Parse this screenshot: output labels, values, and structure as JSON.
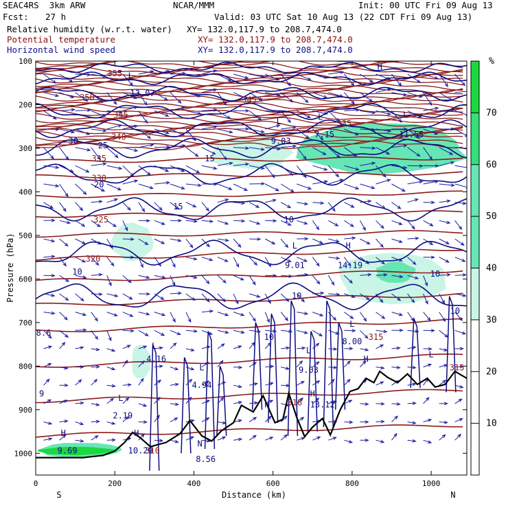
{
  "header": {
    "title": "SEAC4RS  3km ARW",
    "center": "NCAR/MMM",
    "init": "Init: 00 UTC Fri 09 Aug 13",
    "fcst_label": "Fcst:",
    "fcst_value": "27 h",
    "valid": "Valid: 03 UTC Sat 10 Aug 13 (22 CDT Fri 09 Aug 13)",
    "fields": [
      {
        "name": "Relative humidity (w.r.t. water)",
        "xy": "XY= 132.0,117.9 to 208.7,474.0",
        "color": "#000000"
      },
      {
        "name": "Potential temperature",
        "xy": "XY= 132.0,117.9 to 208.7,474.0",
        "color": "#8b1010"
      },
      {
        "name": "Horizontal wind speed",
        "xy": "XY= 132.0,117.9 to 208.7,474.0",
        "color": "#10108b"
      }
    ]
  },
  "chart_data": {
    "type": "heatmap",
    "xlabel": "Distance (km)",
    "ylabel": "Pressure (hPa)",
    "xlim": [
      0,
      1090
    ],
    "ylim": [
      1050,
      100
    ],
    "x_ticks": [
      0,
      200,
      400,
      600,
      800,
      1000
    ],
    "x_tick_labels": [
      "0",
      "200",
      "400",
      "600",
      "800",
      "1000"
    ],
    "y_ticks": [
      100,
      200,
      300,
      400,
      500,
      600,
      700,
      800,
      900,
      1000
    ],
    "y_tick_labels": [
      "100",
      "200",
      "300",
      "400",
      "500",
      "600",
      "700",
      "800",
      "900",
      "1000"
    ],
    "x_end_labels": {
      "left": "S",
      "right": "N"
    },
    "colorbar": {
      "unit": "%",
      "ticks": [
        10,
        20,
        30,
        40,
        50,
        60,
        70
      ],
      "range": [
        0,
        80
      ],
      "shading_threshold": 30,
      "colors": [
        "#c8f5e6",
        "#66e6b5",
        "#35e07a",
        "#1bd83f"
      ]
    },
    "rh_shaded_regions": [
      {
        "x": [
          190,
          300
        ],
        "p": [
          470,
          560
        ],
        "level": 30
      },
      {
        "x": [
          440,
          650
        ],
        "p": [
          270,
          350
        ],
        "level": 30
      },
      {
        "x": [
          650,
          1090
        ],
        "p": [
          240,
          360
        ],
        "level": 40
      },
      {
        "x": [
          890,
          1070
        ],
        "p": [
          260,
          330
        ],
        "level": 50
      },
      {
        "x": [
          760,
          1040
        ],
        "p": [
          540,
          660
        ],
        "level": 30
      },
      {
        "x": [
          860,
          960
        ],
        "p": [
          560,
          610
        ],
        "level": 40
      },
      {
        "x": [
          240,
          290
        ],
        "p": [
          750,
          830
        ],
        "level": 30
      },
      {
        "x": [
          0,
          230
        ],
        "p": [
          975,
          1010
        ],
        "level": 40
      },
      {
        "x": [
          0,
          200
        ],
        "p": [
          985,
          1005
        ],
        "level": 70
      }
    ],
    "theta_contour_labels": [
      {
        "text": "350",
        "x": 130,
        "p": 190
      },
      {
        "text": "345",
        "x": 540,
        "p": 195
      },
      {
        "text": "345",
        "x": 215,
        "p": 230
      },
      {
        "text": "340",
        "x": 210,
        "p": 280
      },
      {
        "text": "335",
        "x": 780,
        "p": 250
      },
      {
        "text": "335",
        "x": 160,
        "p": 330
      },
      {
        "text": "330",
        "x": 160,
        "p": 375
      },
      {
        "text": "325",
        "x": 165,
        "p": 470
      },
      {
        "text": "320",
        "x": 145,
        "p": 560
      },
      {
        "text": "315",
        "x": 860,
        "p": 740
      },
      {
        "text": "318",
        "x": 655,
        "p": 890
      },
      {
        "text": "315",
        "x": 1065,
        "p": 810
      },
      {
        "text": "310",
        "x": 295,
        "p": 1000
      },
      {
        "text": "355",
        "x": 200,
        "p": 135
      }
    ],
    "wind_contour_labels": [
      {
        "text": "10",
        "x": 105,
        "p": 590
      },
      {
        "text": "10",
        "x": 640,
        "p": 470
      },
      {
        "text": "10",
        "x": 660,
        "p": 645
      },
      {
        "text": "10",
        "x": 590,
        "p": 740
      },
      {
        "text": "10",
        "x": 1010,
        "p": 595
      },
      {
        "text": "10",
        "x": 1060,
        "p": 680
      },
      {
        "text": "15",
        "x": 440,
        "p": 330
      },
      {
        "text": "15",
        "x": 360,
        "p": 440
      },
      {
        "text": "20",
        "x": 160,
        "p": 390
      },
      {
        "text": "25",
        "x": 170,
        "p": 300
      },
      {
        "text": "30",
        "x": 95,
        "p": 290
      }
    ],
    "extrema_labels": [
      {
        "text": "L",
        "x": 615,
        "p": 245
      },
      {
        "text": "9.03",
        "x": 620,
        "p": 290
      },
      {
        "text": "L",
        "x": 720,
        "p": 235
      },
      {
        "text": "7.15",
        "x": 730,
        "p": 275
      },
      {
        "text": "L",
        "x": 935,
        "p": 230
      },
      {
        "text": "11.55",
        "x": 950,
        "p": 275
      },
      {
        "text": "L",
        "x": 240,
        "p": 140
      },
      {
        "text": "13.07",
        "x": 270,
        "p": 180
      },
      {
        "text": "H",
        "x": 870,
        "p": 120
      },
      {
        "text": "L",
        "x": 655,
        "p": 530
      },
      {
        "text": "9.01",
        "x": 655,
        "p": 575
      },
      {
        "text": "H",
        "x": 790,
        "p": 530
      },
      {
        "text": "14.19",
        "x": 795,
        "p": 575
      },
      {
        "text": "L",
        "x": 800,
        "p": 710
      },
      {
        "text": "8.00",
        "x": 800,
        "p": 750
      },
      {
        "text": "L",
        "x": 690,
        "p": 770
      },
      {
        "text": "9.03",
        "x": 690,
        "p": 815
      },
      {
        "text": "L",
        "x": 300,
        "p": 760
      },
      {
        "text": "4.16",
        "x": 305,
        "p": 790
      },
      {
        "text": "L",
        "x": 420,
        "p": 810
      },
      {
        "text": "4.94",
        "x": 420,
        "p": 850
      },
      {
        "text": "L",
        "x": 215,
        "p": 880
      },
      {
        "text": "2.19",
        "x": 220,
        "p": 920
      },
      {
        "text": "H",
        "x": 70,
        "p": 960
      },
      {
        "text": "9.69",
        "x": 80,
        "p": 1000
      },
      {
        "text": "H",
        "x": 255,
        "p": 960
      },
      {
        "text": "10.29",
        "x": 265,
        "p": 1000
      },
      {
        "text": "N",
        "x": 415,
        "p": 985
      },
      {
        "text": "8.56",
        "x": 430,
        "p": 1020
      },
      {
        "text": "H",
        "x": 585,
        "p": 895
      },
      {
        "text": "H",
        "x": 700,
        "p": 870
      },
      {
        "text": "13.12",
        "x": 725,
        "p": 895
      },
      {
        "text": "H",
        "x": 835,
        "p": 790
      },
      {
        "text": "L",
        "x": 1000,
        "p": 780
      },
      {
        "text": "9",
        "x": 15,
        "p": 870
      },
      {
        "text": "8.6",
        "x": 20,
        "p": 730
      }
    ],
    "terrain": {
      "x": [
        0,
        60,
        120,
        170,
        200,
        225,
        245,
        265,
        290,
        330,
        365,
        390,
        420,
        445,
        470,
        500,
        520,
        550,
        575,
        605,
        625,
        640,
        660,
        680,
        700,
        725,
        745,
        770,
        795,
        815,
        835,
        855,
        870,
        890,
        915,
        940,
        965,
        990,
        1010,
        1035,
        1060,
        1090
      ],
      "p": [
        1010,
        1010,
        1010,
        1005,
        995,
        975,
        952,
        965,
        985,
        975,
        955,
        925,
        960,
        972,
        948,
        930,
        890,
        905,
        868,
        930,
        922,
        862,
        918,
        962,
        940,
        920,
        958,
        900,
        858,
        852,
        828,
        838,
        812,
        826,
        838,
        818,
        842,
        828,
        848,
        842,
        812,
        828
      ]
    }
  }
}
